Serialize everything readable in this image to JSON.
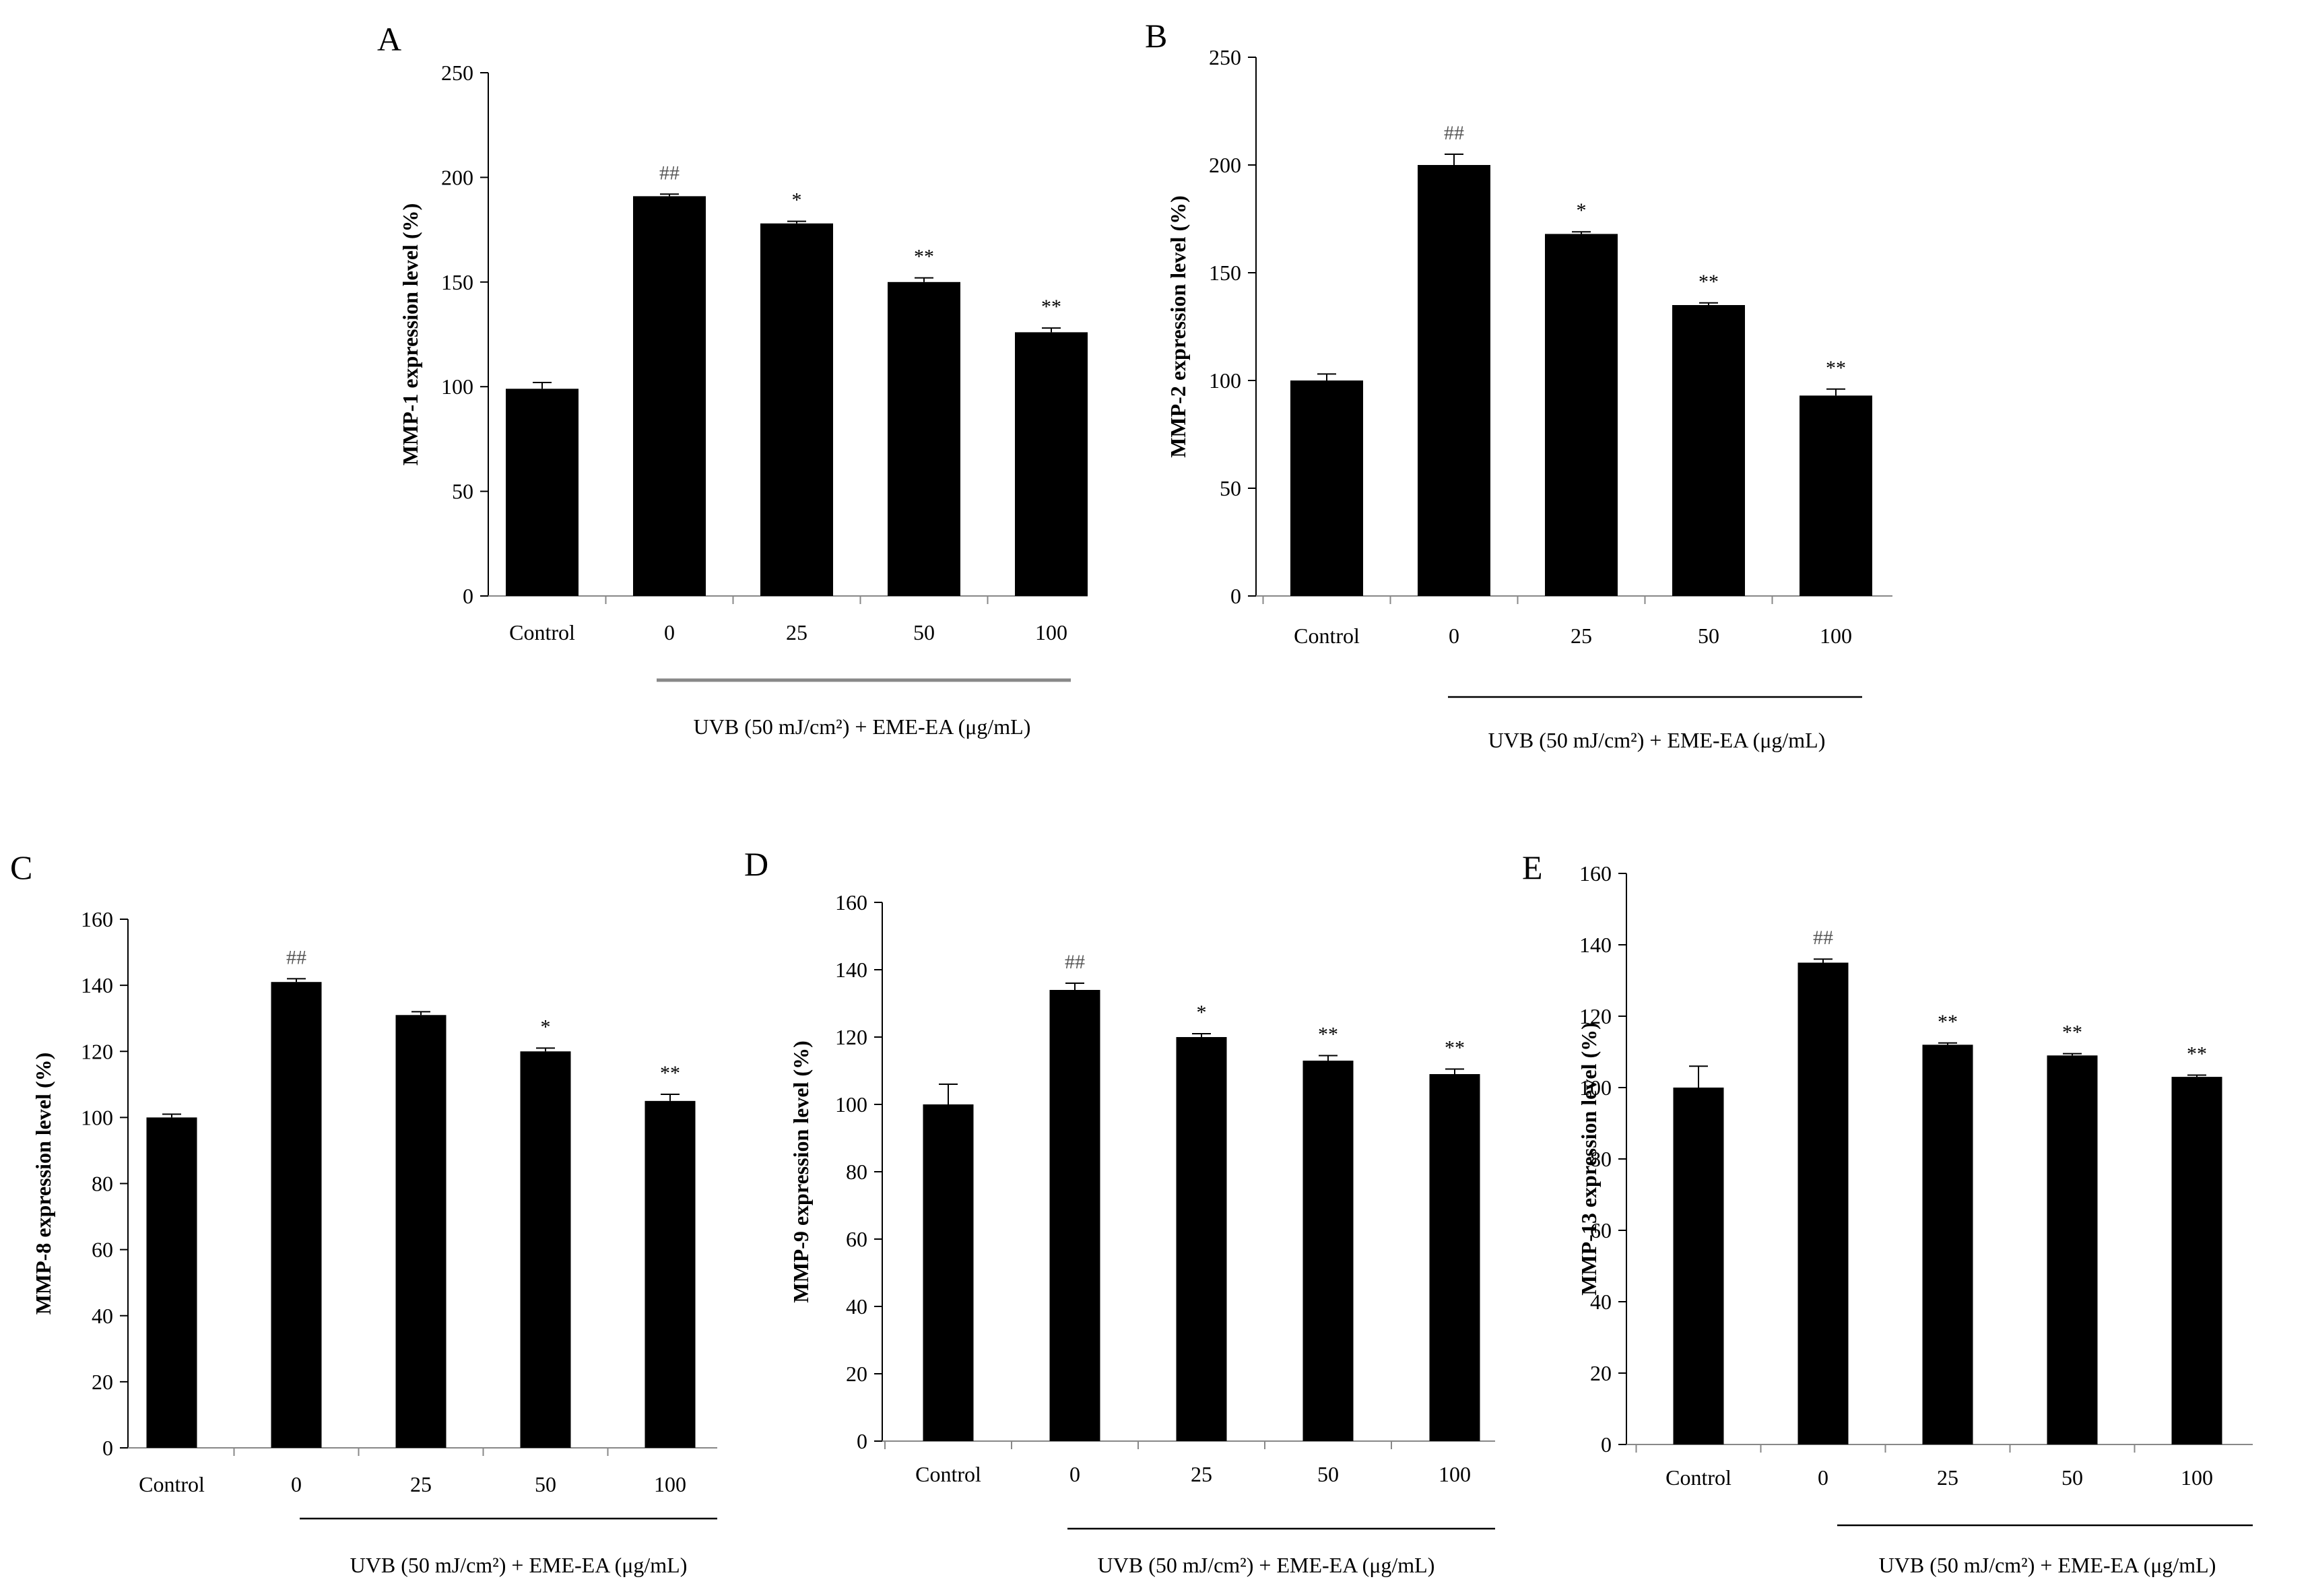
{
  "chart_data": [
    {
      "type": "bar",
      "panel": "A",
      "ylabel": "MMP-1 expression level (%)",
      "xlabel": "UVB (50 mJ/cm²) + EME-EA (μg/mL)",
      "categories": [
        "Control",
        "0",
        "25",
        "50",
        "100"
      ],
      "values": [
        99,
        191,
        178,
        150,
        126
      ],
      "errors": [
        3,
        1,
        1,
        2,
        2
      ],
      "annotations": [
        "",
        "##",
        "*",
        "**",
        "**"
      ],
      "ylim": [
        0,
        250
      ],
      "yticks": [
        0,
        50,
        100,
        150,
        200,
        250
      ]
    },
    {
      "type": "bar",
      "panel": "B",
      "ylabel": "MMP-2 expression level (%)",
      "xlabel": "UVB (50 mJ/cm²) + EME-EA (μg/mL)",
      "categories": [
        "Control",
        "0",
        "25",
        "50",
        "100"
      ],
      "values": [
        100,
        200,
        168,
        135,
        93
      ],
      "errors": [
        3,
        5,
        1,
        1,
        3
      ],
      "annotations": [
        "",
        "##",
        "*",
        "**",
        "**"
      ],
      "ylim": [
        0,
        250
      ],
      "yticks": [
        0,
        50,
        100,
        150,
        200,
        250
      ]
    },
    {
      "type": "bar",
      "panel": "C",
      "ylabel": "MMP-8 expression level (%)",
      "xlabel": "UVB (50 mJ/cm²) + EME-EA (μg/mL)",
      "categories": [
        "Control",
        "0",
        "25",
        "50",
        "100"
      ],
      "values": [
        100,
        141,
        131,
        120,
        105
      ],
      "errors": [
        1,
        1,
        1,
        1,
        2
      ],
      "annotations": [
        "",
        "##",
        "",
        "*",
        "**"
      ],
      "ylim": [
        0,
        160
      ],
      "yticks": [
        0,
        20,
        40,
        60,
        80,
        100,
        120,
        140,
        160
      ]
    },
    {
      "type": "bar",
      "panel": "D",
      "ylabel": "MMP-9 expression level (%)",
      "xlabel": "UVB (50 mJ/cm²) + EME-EA (μg/mL)",
      "categories": [
        "Control",
        "0",
        "25",
        "50",
        "100"
      ],
      "values": [
        100,
        134,
        120,
        113,
        109
      ],
      "errors": [
        6,
        2,
        1,
        1.5,
        1.5
      ],
      "annotations": [
        "",
        "##",
        "*",
        "**",
        "**"
      ],
      "ylim": [
        0,
        160
      ],
      "yticks": [
        0,
        20,
        40,
        60,
        80,
        100,
        120,
        140,
        160
      ]
    },
    {
      "type": "bar",
      "panel": "E",
      "ylabel": "MMP-13 expression level (%)",
      "xlabel": "UVB (50 mJ/cm²) + EME-EA (μg/mL)",
      "categories": [
        "Control",
        "0",
        "25",
        "50",
        "100"
      ],
      "values": [
        100,
        135,
        112,
        109,
        103
      ],
      "errors": [
        6,
        1,
        0.5,
        0.5,
        0.5
      ],
      "annotations": [
        "",
        "##",
        "**",
        "**",
        "**"
      ],
      "ylim": [
        0,
        160
      ],
      "yticks": [
        0,
        20,
        40,
        60,
        80,
        100,
        120,
        140,
        160
      ]
    }
  ]
}
